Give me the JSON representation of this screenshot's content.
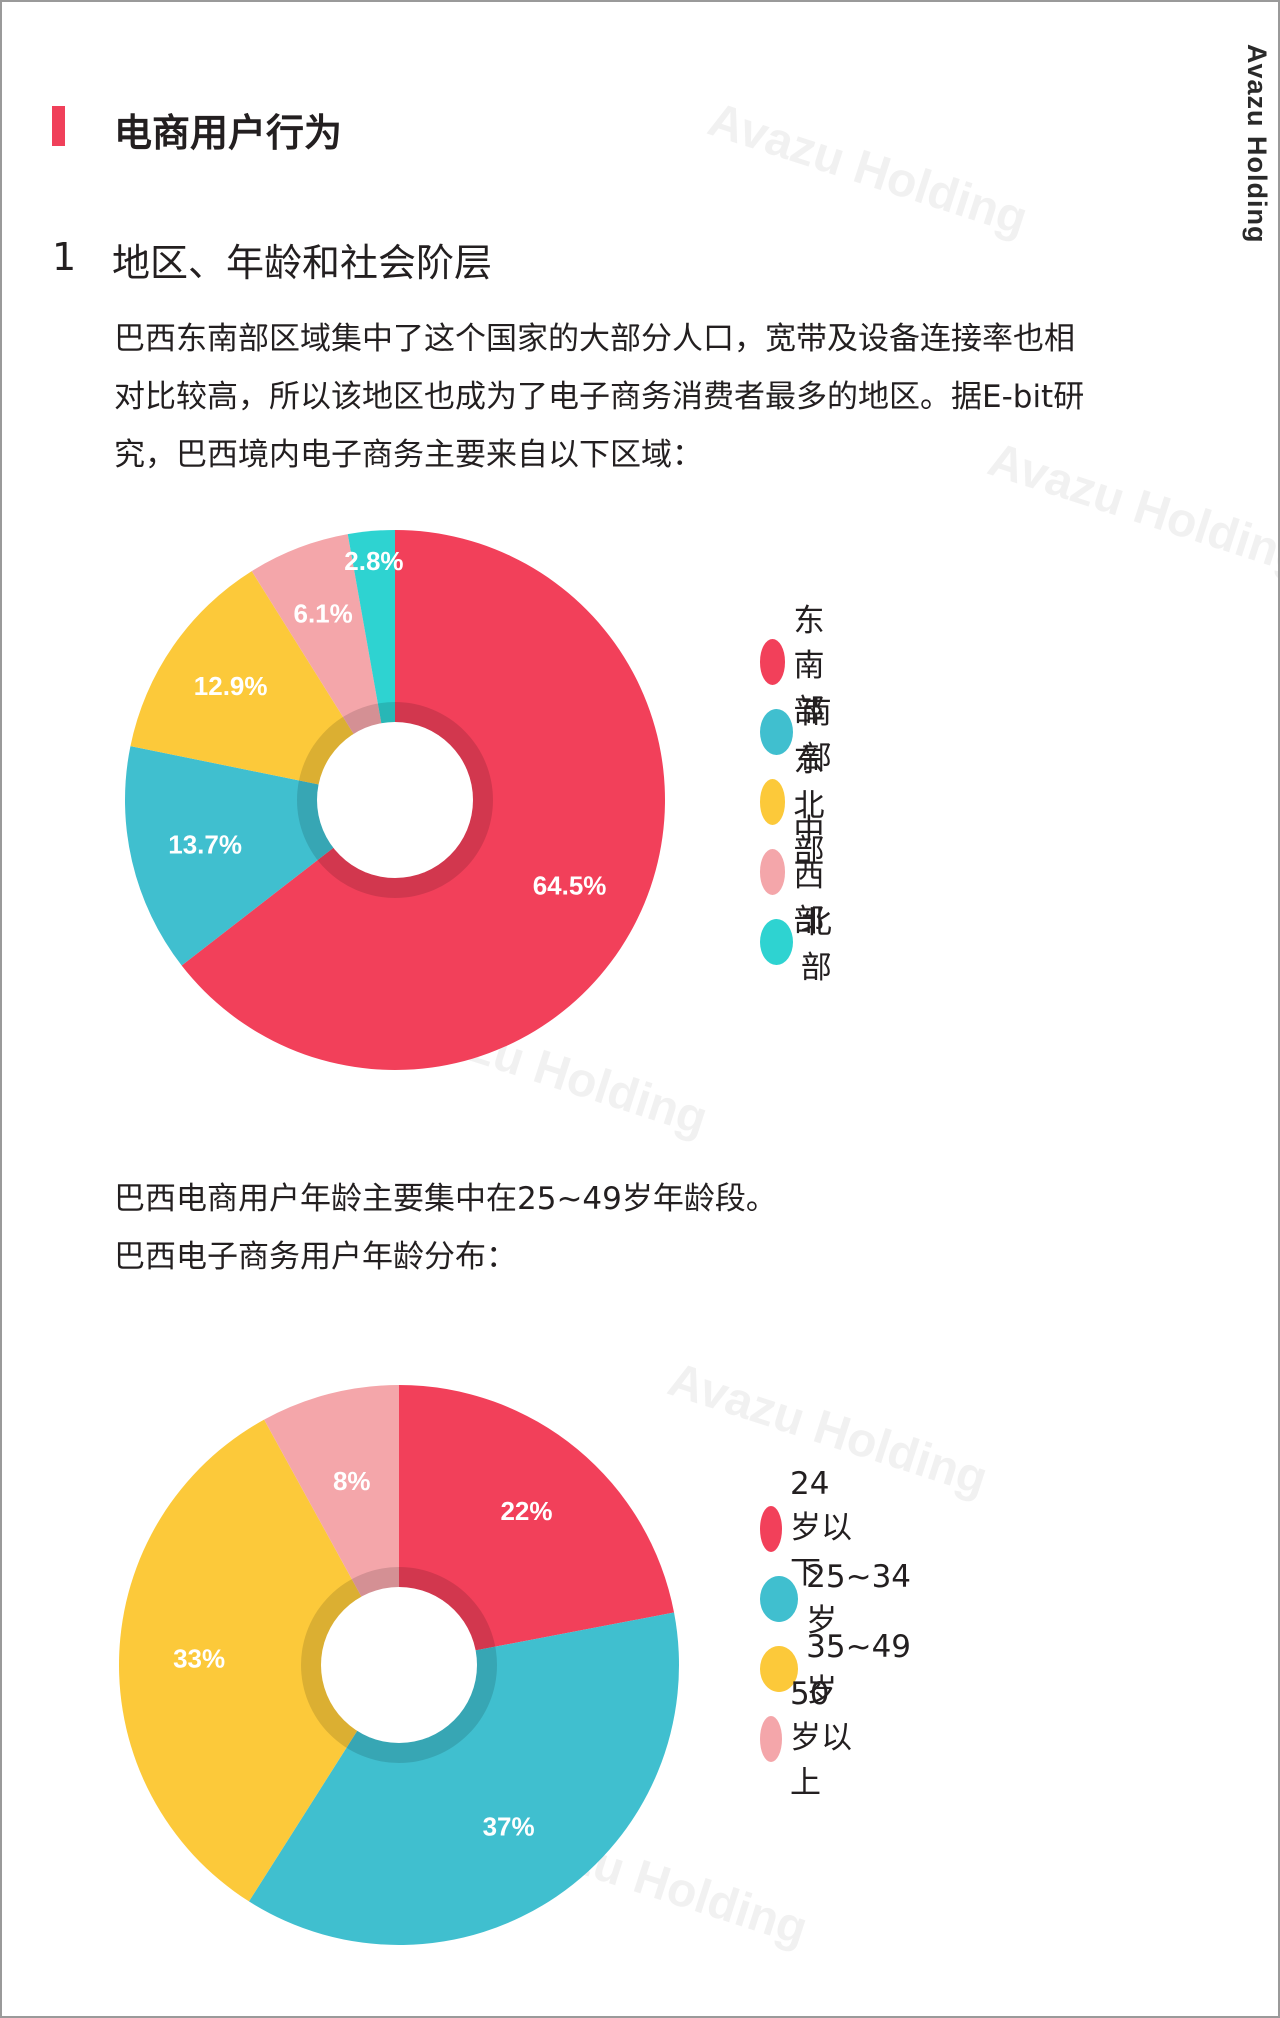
{
  "brand": "Avazu Holding",
  "watermark_text": "Avazu Holding",
  "section_title": "电商用户行为",
  "subsection": {
    "number": "1",
    "title": "地区、年龄和社会阶层"
  },
  "paragraph1": [
    "巴西东南部区域集中了这个国家的大部分人口，宽带及设备连接率也相",
    "对比较高，所以该地区也成为了电子商务消费者最多的地区。据E-bit研",
    "究，巴西境内电子商务主要来自以下区域："
  ],
  "paragraph2": [
    "巴西电商用户年龄主要集中在25~49岁年龄段。",
    "巴西电子商务用户年龄分布："
  ],
  "colors": {
    "accent": "#f0405a",
    "red": "#f2405a",
    "teal": "#40bfcf",
    "yellow": "#fcc93a",
    "pink": "#f4a6aa",
    "cyan": "#2ed3d1"
  },
  "chart_data": [
    {
      "type": "pie",
      "variant": "donut",
      "title": "",
      "categories": [
        "东南部",
        "南部",
        "东北部",
        "中西部",
        "北部"
      ],
      "values": [
        64.5,
        13.7,
        12.9,
        6.1,
        2.8
      ],
      "labels": [
        "64.5%",
        "13.7%",
        "12.9%",
        "6.1%",
        "2.8%"
      ],
      "colors": [
        "#f2405a",
        "#40bfcf",
        "#fcc93a",
        "#f4a6aa",
        "#2ed3d1"
      ],
      "legend_position": "right"
    },
    {
      "type": "pie",
      "variant": "donut",
      "title": "",
      "categories": [
        "24岁以下",
        "25~34岁",
        "35~49岁",
        "50岁以上"
      ],
      "values": [
        22,
        37,
        33,
        8
      ],
      "labels": [
        "22%",
        "37%",
        "33%",
        "8%"
      ],
      "colors": [
        "#f2405a",
        "#40bfcf",
        "#fcc93a",
        "#f4a6aa"
      ],
      "legend_position": "right"
    }
  ]
}
